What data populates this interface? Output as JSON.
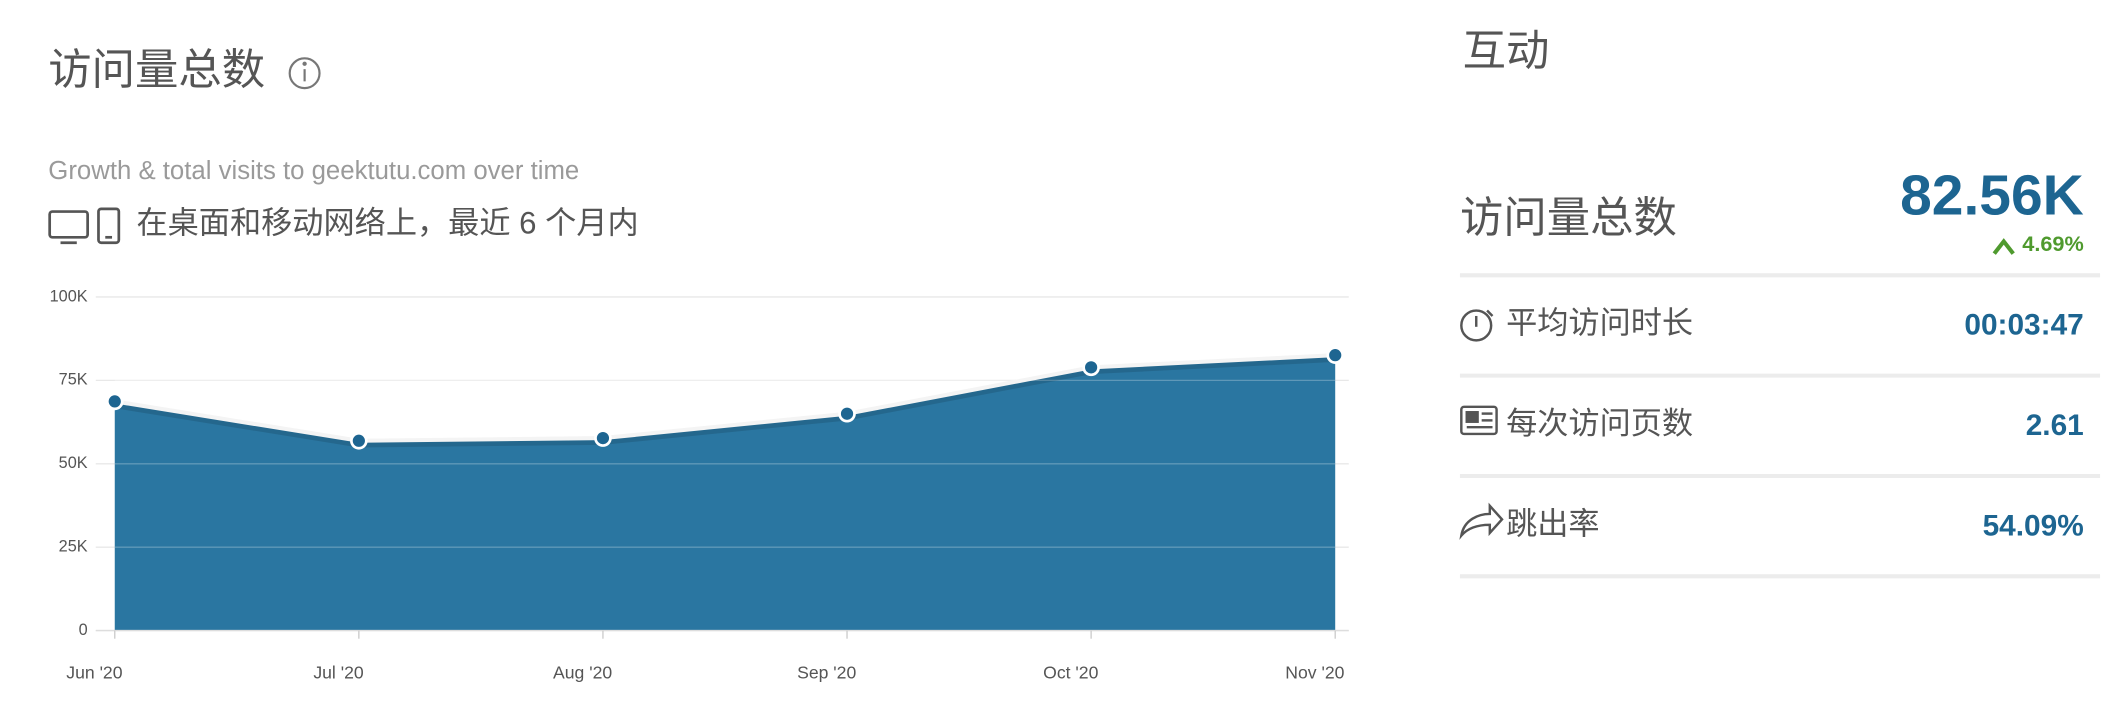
{
  "chart_data": {
    "type": "area",
    "title": "访问量总数",
    "subtitle": "Growth & total visits to geektutu.com over time",
    "description": "在桌面和移动网络上，最近 6 个月内",
    "categories": [
      "Jun '20",
      "Jul '20",
      "Aug '20",
      "Sep '20",
      "Oct '20",
      "Nov '20"
    ],
    "series": [
      {
        "name": "访问量总数",
        "color": "#2a76a1",
        "values": [
          68700,
          56900,
          57700,
          65000,
          78900,
          82560
        ]
      }
    ],
    "ylim": [
      0,
      100000
    ],
    "yticks": [
      0,
      {
        "value": 25000,
        "label": "25K"
      },
      {
        "value": 50000,
        "label": "50K"
      },
      {
        "value": 75000,
        "label": "75K"
      },
      {
        "value": 100000,
        "label": "100K"
      }
    ],
    "grid": true
  },
  "panel": {
    "title": "互动",
    "headline": {
      "label": "访问量总数",
      "value": "82.56K",
      "change": "4.69%"
    },
    "metrics": [
      {
        "label": "平均访问时长",
        "value": "00:03:47"
      },
      {
        "label": "每次访问页数",
        "value": "2.61"
      },
      {
        "label": "跳出率",
        "value": "54.09%"
      }
    ]
  }
}
